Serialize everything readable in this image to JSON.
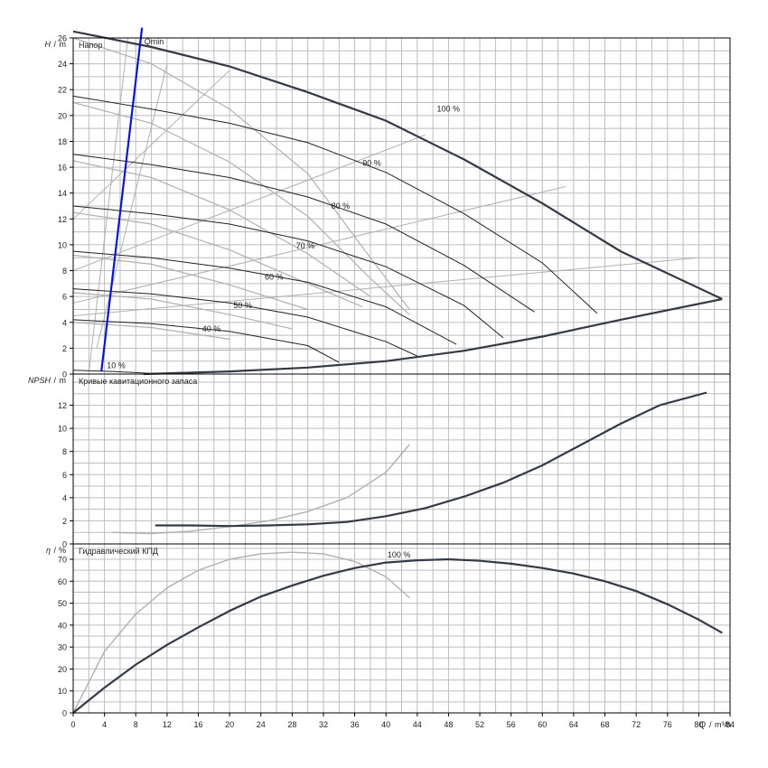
{
  "chart_data": [
    {
      "type": "line",
      "panel_title": "Напор",
      "ylabel_symbol": "H",
      "ylabel_unit": "m",
      "xlim": [
        0,
        84
      ],
      "ylim": [
        0,
        26
      ],
      "yticks": [
        0,
        2,
        4,
        6,
        8,
        10,
        12,
        14,
        16,
        18,
        20,
        22,
        24,
        26
      ],
      "grid": true,
      "curves": [
        {
          "label": "100 %",
          "points": [
            [
              0,
              26.5
            ],
            [
              10,
              25.3
            ],
            [
              20,
              23.8
            ],
            [
              30,
              21.8
            ],
            [
              40,
              19.6
            ],
            [
              50,
              16.6
            ],
            [
              60,
              13.2
            ],
            [
              70,
              9.5
            ],
            [
              83,
              5.8
            ]
          ]
        },
        {
          "label": "90 %",
          "points": [
            [
              0,
              21.5
            ],
            [
              10,
              20.5
            ],
            [
              20,
              19.4
            ],
            [
              30,
              17.9
            ],
            [
              40,
              15.6
            ],
            [
              50,
              12.4
            ],
            [
              60,
              8.6
            ],
            [
              67,
              4.7
            ]
          ]
        },
        {
          "label": "80 %",
          "points": [
            [
              0,
              17
            ],
            [
              10,
              16.2
            ],
            [
              20,
              15.2
            ],
            [
              30,
              13.7
            ],
            [
              40,
              11.6
            ],
            [
              50,
              8.4
            ],
            [
              59,
              4.8
            ]
          ]
        },
        {
          "label": "70 %",
          "points": [
            [
              0,
              13
            ],
            [
              10,
              12.4
            ],
            [
              20,
              11.6
            ],
            [
              30,
              10.3
            ],
            [
              40,
              8.3
            ],
            [
              50,
              5.3
            ],
            [
              55,
              2.8
            ]
          ]
        },
        {
          "label": "60 %",
          "points": [
            [
              0,
              9.5
            ],
            [
              10,
              9
            ],
            [
              20,
              8.2
            ],
            [
              30,
              7.1
            ],
            [
              40,
              5.2
            ],
            [
              49,
              2.3
            ]
          ]
        },
        {
          "label": "50 %",
          "points": [
            [
              0,
              6.6
            ],
            [
              10,
              6.2
            ],
            [
              20,
              5.5
            ],
            [
              30,
              4.4
            ],
            [
              40,
              2.5
            ],
            [
              44,
              1.4
            ]
          ]
        },
        {
          "label": "40 %",
          "points": [
            [
              0,
              4.2
            ],
            [
              10,
              3.9
            ],
            [
              20,
              3.3
            ],
            [
              30,
              2.2
            ],
            [
              34,
              0.9
            ]
          ]
        },
        {
          "label": "10 %",
          "points": [
            [
              0,
              0.3
            ],
            [
              5,
              0.2
            ],
            [
              10,
              0.05
            ]
          ]
        }
      ],
      "system_curve": [
        [
          9,
          0
        ],
        [
          20,
          0.2
        ],
        [
          30,
          0.5
        ],
        [
          40,
          1
        ],
        [
          50,
          1.8
        ],
        [
          60,
          2.9
        ],
        [
          70,
          4.2
        ],
        [
          83,
          5.8
        ]
      ],
      "qmin_line": {
        "label": "Qmin",
        "points": [
          [
            3.6,
            0.2
          ],
          [
            8.8,
            26.8
          ]
        ]
      },
      "background_pump_curves": [
        {
          "points": [
            [
              0,
              26
            ],
            [
              10,
              24
            ],
            [
              20,
              20.5
            ],
            [
              30,
              15.5
            ],
            [
              38,
              9
            ],
            [
              43,
              5
            ]
          ]
        },
        {
          "points": [
            [
              0,
              21
            ],
            [
              10,
              19.4
            ],
            [
              20,
              16.4
            ],
            [
              30,
              12.2
            ],
            [
              38,
              7.4
            ],
            [
              43,
              4.6
            ]
          ]
        },
        {
          "points": [
            [
              0,
              16.5
            ],
            [
              10,
              15.2
            ],
            [
              20,
              12.7
            ],
            [
              30,
              9.3
            ],
            [
              38,
              6
            ]
          ]
        },
        {
          "points": [
            [
              0,
              12.5
            ],
            [
              10,
              11.6
            ],
            [
              20,
              9.6
            ],
            [
              30,
              7
            ],
            [
              37,
              5.2
            ]
          ]
        },
        {
          "points": [
            [
              0,
              9.2
            ],
            [
              10,
              8.5
            ],
            [
              20,
              6.9
            ],
            [
              30,
              5
            ]
          ]
        },
        {
          "points": [
            [
              0,
              6.3
            ],
            [
              10,
              5.8
            ],
            [
              20,
              4.6
            ],
            [
              28,
              3.5
            ]
          ]
        },
        {
          "points": [
            [
              0,
              4
            ],
            [
              10,
              3.6
            ],
            [
              20,
              2.7
            ]
          ]
        }
      ],
      "background_efficiency_lines": [
        {
          "points": [
            [
              0,
              12
            ],
            [
              20,
              23.5
            ]
          ]
        },
        {
          "points": [
            [
              0,
              8
            ],
            [
              45,
              18.5
            ]
          ]
        },
        {
          "points": [
            [
              0,
              5.5
            ],
            [
              63,
              14.5
            ]
          ]
        },
        {
          "points": [
            [
              0,
              4.5
            ],
            [
              80,
              9
            ]
          ]
        },
        {
          "points": [
            [
              10,
              1.8
            ],
            [
              42,
              2
            ]
          ]
        },
        {
          "points": [
            [
              7,
              26
            ],
            [
              2,
              0.1
            ]
          ]
        },
        {
          "points": [
            [
              12,
              24
            ],
            [
              3,
              2
            ]
          ]
        }
      ]
    },
    {
      "type": "line",
      "panel_title": "Кривые кавитационного запаса",
      "ylabel_symbol": "NPSH",
      "ylabel_unit": "m",
      "xlim": [
        0,
        84
      ],
      "ylim": [
        0,
        14.7
      ],
      "yticks": [
        0,
        2,
        4,
        6,
        8,
        10,
        12
      ],
      "grid": true,
      "series": [
        {
          "points": [
            [
              10.5,
              1.6
            ],
            [
              15,
              1.6
            ],
            [
              20,
              1.55
            ],
            [
              25,
              1.6
            ],
            [
              30,
              1.7
            ],
            [
              35,
              1.9
            ],
            [
              40,
              2.4
            ],
            [
              45,
              3.1
            ],
            [
              50,
              4.1
            ],
            [
              55,
              5.3
            ],
            [
              60,
              6.8
            ],
            [
              65,
              8.6
            ],
            [
              70,
              10.4
            ],
            [
              75,
              12
            ],
            [
              81,
              13.1
            ]
          ]
        }
      ],
      "background_series": [
        {
          "points": [
            [
              5,
              1
            ],
            [
              10,
              0.9
            ],
            [
              15,
              1.1
            ],
            [
              20,
              1.5
            ],
            [
              25,
              2
            ],
            [
              30,
              2.8
            ],
            [
              35,
              4
            ],
            [
              40,
              6.2
            ],
            [
              43,
              8.6
            ]
          ]
        }
      ]
    },
    {
      "type": "line",
      "panel_title": "Гидравлический КПД",
      "ylabel_symbol": "η",
      "ylabel_unit": "%",
      "xlabel_symbol": "Q",
      "xlabel_unit": "m³/h",
      "xlim": [
        0,
        84
      ],
      "ylim": [
        0,
        77
      ],
      "yticks": [
        0,
        10,
        20,
        30,
        40,
        50,
        60,
        70
      ],
      "xticks": [
        0,
        4,
        8,
        12,
        16,
        20,
        24,
        28,
        32,
        36,
        40,
        44,
        48,
        52,
        56,
        60,
        64,
        68,
        72,
        76,
        80,
        84
      ],
      "grid": true,
      "series": [
        {
          "label": "100 %",
          "points": [
            [
              0,
              0
            ],
            [
              4,
              11.5
            ],
            [
              8,
              22
            ],
            [
              12,
              31
            ],
            [
              16,
              39
            ],
            [
              20,
              46.5
            ],
            [
              24,
              53
            ],
            [
              28,
              58
            ],
            [
              32,
              62.5
            ],
            [
              36,
              66
            ],
            [
              40,
              68.5
            ],
            [
              44,
              69.5
            ],
            [
              48,
              70
            ],
            [
              52,
              69.3
            ],
            [
              56,
              68
            ],
            [
              60,
              66
            ],
            [
              64,
              63.5
            ],
            [
              68,
              60
            ],
            [
              72,
              55.5
            ],
            [
              76,
              49.5
            ],
            [
              80,
              42.5
            ],
            [
              83,
              36.5
            ]
          ]
        }
      ],
      "background_series": [
        {
          "points": [
            [
              0,
              0
            ],
            [
              4,
              28
            ],
            [
              8,
              45
            ],
            [
              12,
              57
            ],
            [
              16,
              65
            ],
            [
              20,
              70
            ],
            [
              24,
              72.5
            ],
            [
              28,
              73.2
            ],
            [
              32,
              72.5
            ],
            [
              36,
              69
            ],
            [
              40,
              62
            ],
            [
              43,
              52.5
            ]
          ]
        }
      ]
    }
  ]
}
